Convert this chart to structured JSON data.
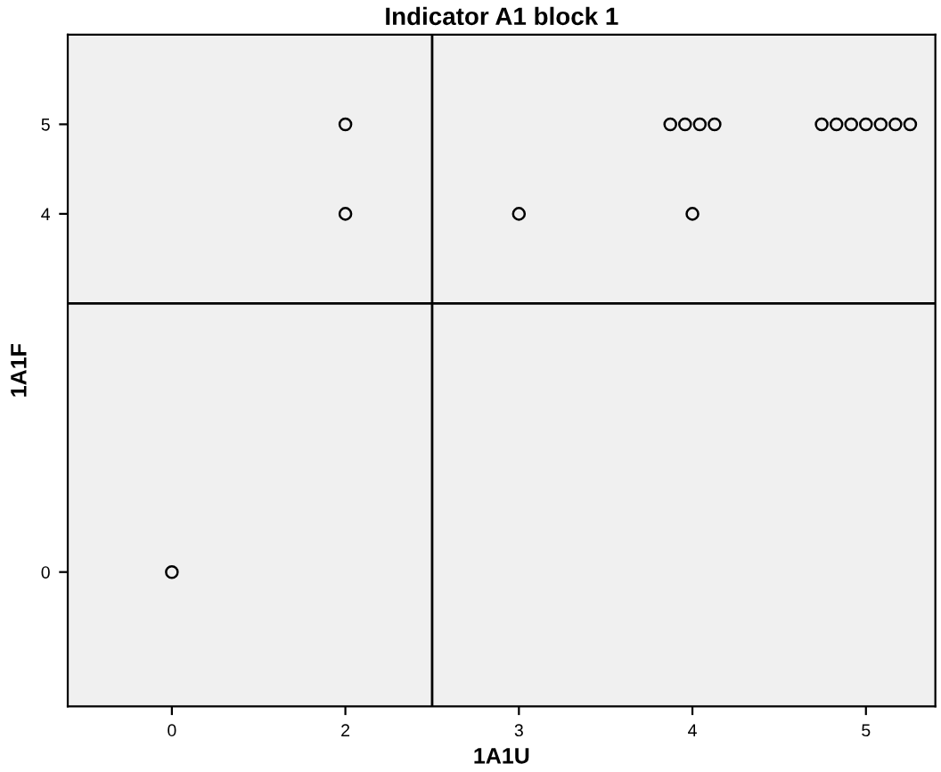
{
  "chart_data": {
    "type": "scatter",
    "title": "Indicator A1 block 1",
    "xlabel": "1A1U",
    "ylabel": "1A1F",
    "categories": [
      "0",
      "2",
      "3",
      "4",
      "5"
    ],
    "series": [
      {
        "color": "#000000",
        "x": [
          "0",
          "2",
          "2",
          "3",
          "4",
          "4",
          "4",
          "4",
          "4",
          "5",
          "5",
          "5",
          "5",
          "5",
          "5",
          "5"
        ],
        "values": [
          0,
          5,
          4,
          4,
          4,
          5,
          5,
          5,
          5,
          5,
          5,
          5,
          5,
          5,
          5,
          5
        ]
      }
    ],
    "ylim": [
      -1.5,
      6
    ],
    "yticks": [
      0,
      4,
      5
    ],
    "ref_lines": [
      {
        "axis": "y",
        "value": 3,
        "color": "#000000"
      }
    ],
    "marker": "circle",
    "grid": false
  }
}
